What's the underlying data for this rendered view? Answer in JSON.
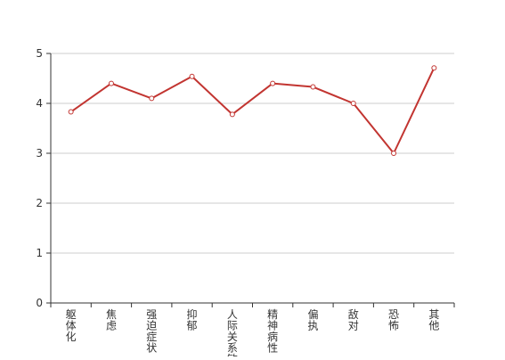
{
  "chart_data": {
    "type": "line",
    "categories": [
      "躯体化",
      "焦虑",
      "强迫症状",
      "抑郁",
      "人际关系敏感",
      "精神病性",
      "偏执",
      "敌对",
      "恐怖",
      "其他"
    ],
    "series": [
      {
        "values": [
          3.83,
          4.4,
          4.1,
          4.54,
          3.78,
          4.4,
          4.33,
          4.0,
          3.0,
          4.71
        ]
      }
    ],
    "yticks": [
      0,
      1,
      2,
      3,
      4,
      5
    ],
    "ylim": [
      0,
      5
    ],
    "grid": true,
    "title": "",
    "xlabel": "",
    "ylabel": "",
    "colors": {
      "line": "#c23531",
      "grid": "#cccccc",
      "axis": "#333333",
      "text": "#333333"
    }
  }
}
